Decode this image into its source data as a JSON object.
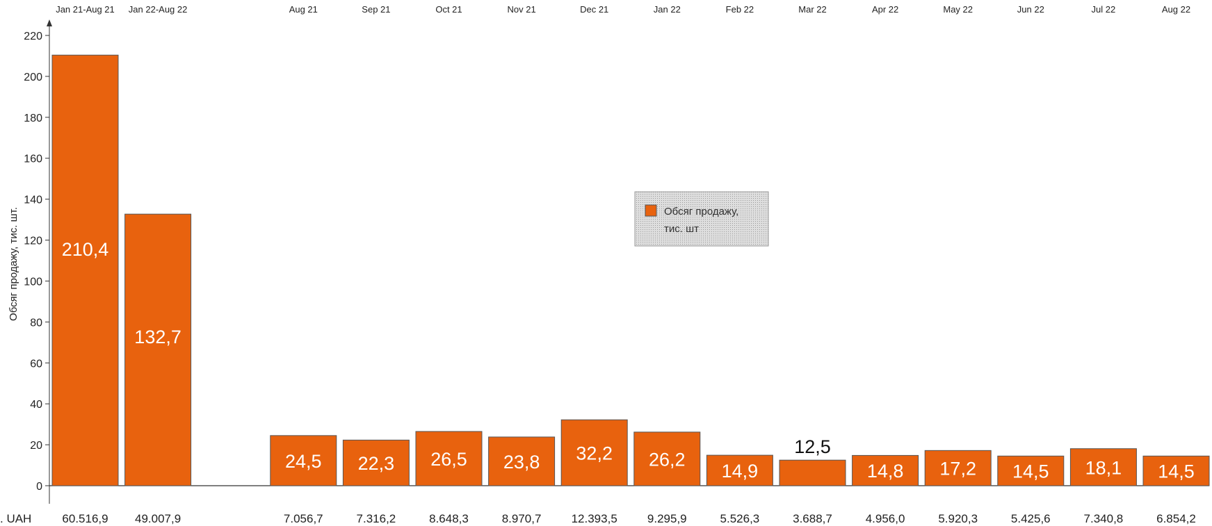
{
  "chart_data": {
    "type": "bar",
    "categories": [
      "Jan 21-Aug 21",
      "Jan 22-Aug 22",
      "",
      "Aug 21",
      "Sep 21",
      "Oct 21",
      "Nov 21",
      "Dec 21",
      "Jan 22",
      "Feb 22",
      "Mar 22",
      "Apr 22",
      "May 22",
      "Jun 22",
      "Jul 22",
      "Aug 22"
    ],
    "series": [
      {
        "name": "Обсяг продажу, тис. шт",
        "values": [
          210.4,
          132.7,
          null,
          24.5,
          22.3,
          26.5,
          23.8,
          32.2,
          26.2,
          14.9,
          12.5,
          14.8,
          17.2,
          14.5,
          18.1,
          14.5
        ],
        "labels": [
          "210,4",
          "132,7",
          "",
          "24,5",
          "22,3",
          "26,5",
          "23,8",
          "32,2",
          "26,2",
          "14,9",
          "12,5",
          "14,8",
          "17,2",
          "14,5",
          "18,1",
          "14,5"
        ]
      }
    ],
    "revenue_row": {
      "label": ". UAH",
      "values": [
        "60.516,9",
        "49.007,9",
        "",
        "7.056,7",
        "7.316,2",
        "8.648,3",
        "8.970,7",
        "12.393,5",
        "9.295,9",
        "5.526,3",
        "3.688,7",
        "4.956,0",
        "5.920,3",
        "5.425,6",
        "7.340,8",
        "6.854,2"
      ]
    },
    "ylabel": "Обсяг продажу, тис. шт.",
    "xlabel": "",
    "ylim": [
      0,
      220
    ],
    "yticks": [
      0,
      20,
      40,
      60,
      80,
      100,
      120,
      140,
      160,
      180,
      200,
      220
    ],
    "legend_position": "center-right",
    "grid": false,
    "colors": {
      "bar": "#e8620e",
      "bar_edge": "#555555",
      "axis": "#333333"
    }
  }
}
